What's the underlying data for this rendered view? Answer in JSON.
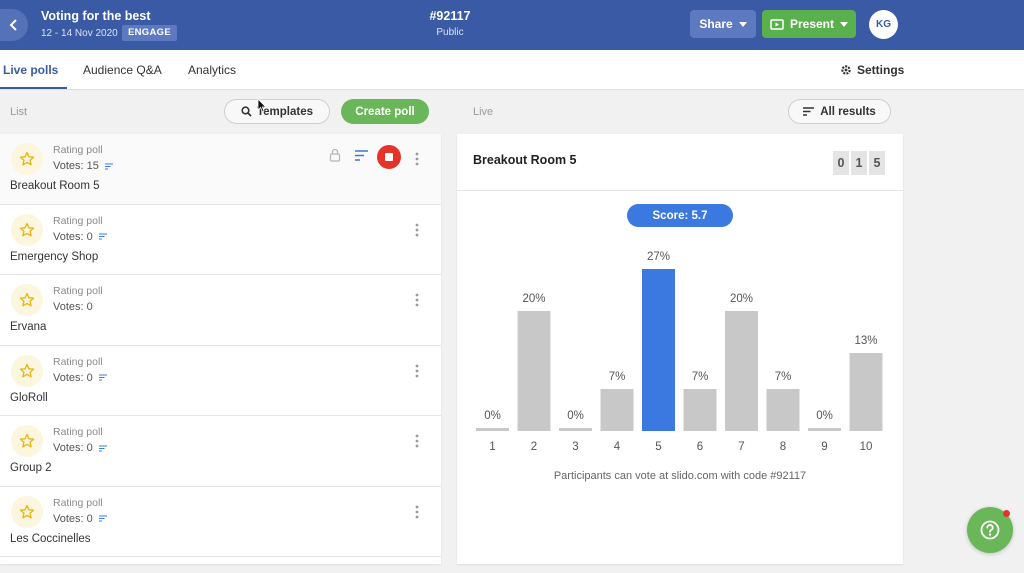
{
  "header": {
    "event_title": "Voting for the best",
    "event_dates": "12 - 14 Nov 2020",
    "event_badge": "ENGAGE",
    "event_code": "#92117",
    "event_privacy": "Public",
    "share_label": "Share",
    "present_label": "Present",
    "avatar_initials": "KG",
    "bar_color": "#3b5aa6",
    "present_color": "#5ab04c"
  },
  "tabs": [
    {
      "label": "Live polls",
      "active": true
    },
    {
      "label": "Audience Q&A",
      "active": false
    },
    {
      "label": "Analytics",
      "active": false
    }
  ],
  "settings_label": "Settings",
  "list_label": "List",
  "live_label": "Live",
  "templates_label": "Templates",
  "create_poll_label": "Create poll",
  "all_results_label": "All results",
  "polls": [
    {
      "type": "Rating poll",
      "votes": "Votes: 15",
      "title": "Breakout Room 5"
    },
    {
      "type": "Rating poll",
      "votes": "Votes: 0",
      "title": "Emergency Shop"
    },
    {
      "type": "Rating poll",
      "votes": "Votes: 0",
      "title": "Ervana"
    },
    {
      "type": "Rating poll",
      "votes": "Votes: 0",
      "title": "GloRoll"
    },
    {
      "type": "Rating poll",
      "votes": "Votes: 0",
      "title": "Group 2"
    },
    {
      "type": "Rating poll",
      "votes": "Votes: 0",
      "title": "Les Coccinelles"
    }
  ],
  "live": {
    "title": "Breakout Room 5",
    "vote_digits": [
      "0",
      "1",
      "5"
    ],
    "score": "Score: 5.7",
    "footnote": "Participants can vote at slido.com with code #92117"
  },
  "chart_data": {
    "type": "bar",
    "categories": [
      "1",
      "2",
      "3",
      "4",
      "5",
      "6",
      "7",
      "8",
      "9",
      "10"
    ],
    "values": [
      0,
      20,
      0,
      7,
      27,
      7,
      20,
      7,
      0,
      13
    ],
    "labels": [
      "0%",
      "20%",
      "0%",
      "7%",
      "27%",
      "7%",
      "20%",
      "7%",
      "0%",
      "13%"
    ],
    "highlight_index": 4,
    "bar_color": "#c8c8c8",
    "highlight_color": "#3b78e0",
    "ylim": [
      0,
      27
    ],
    "grid": false
  },
  "icons": {
    "back": "chevron-left-icon",
    "star": "star-icon",
    "settings": "gear-icon",
    "search": "search-icon",
    "sort": "sort-icon",
    "lock": "lock-icon",
    "stop": "stop-icon",
    "more": "kebab-icon",
    "help": "help-icon"
  }
}
